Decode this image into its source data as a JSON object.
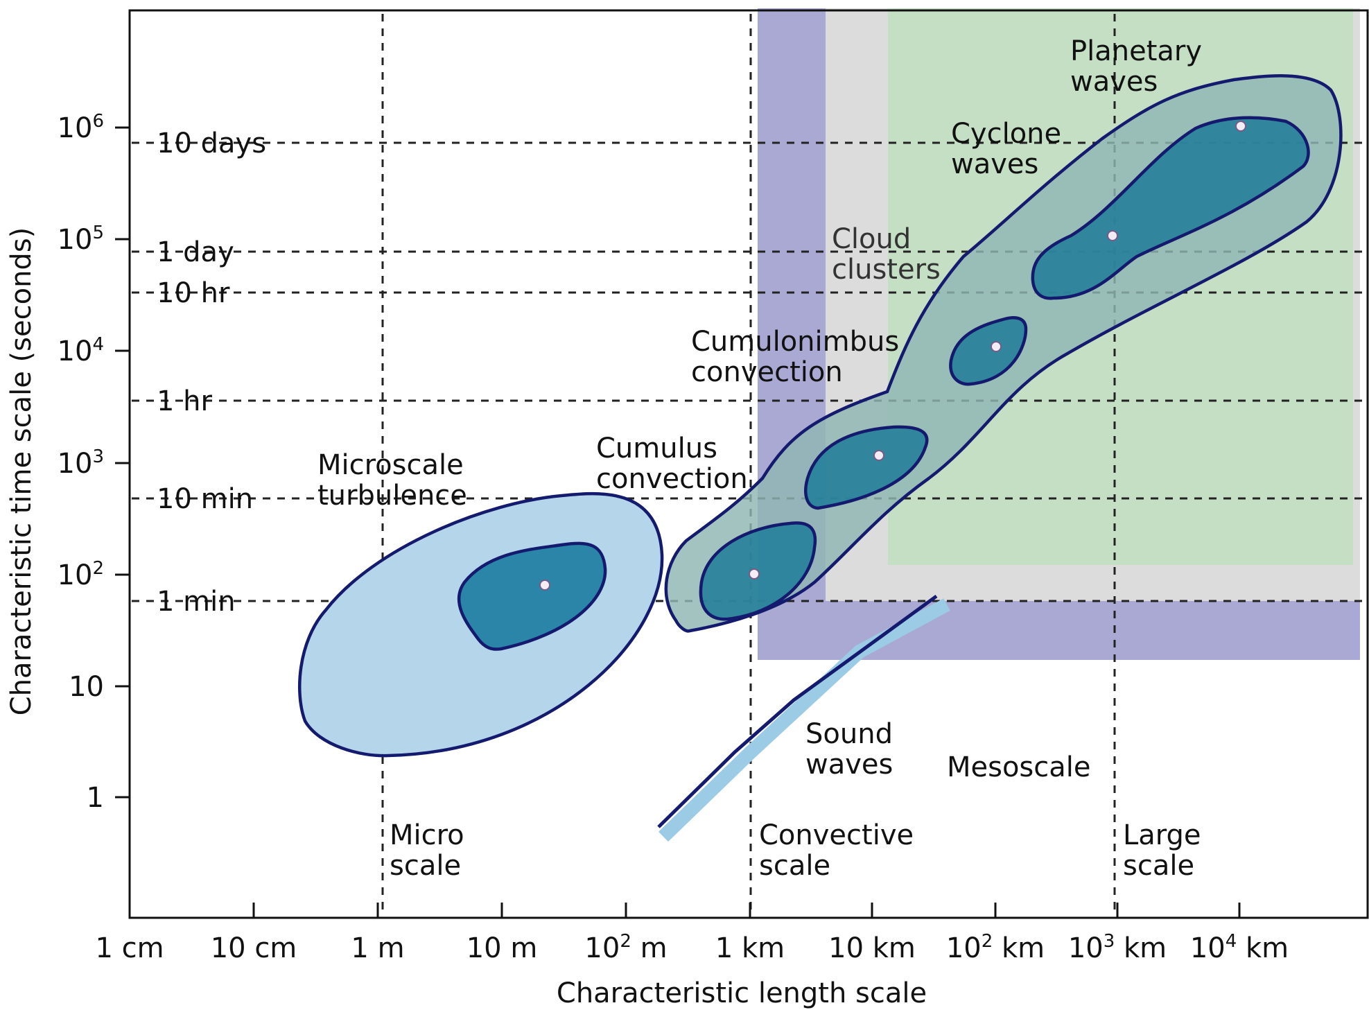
{
  "axes": {
    "x_label": "Characteristic length scale",
    "y_label": "Characteristic time scale (seconds)",
    "x_ticks": [
      {
        "base": "1 cm",
        "sup": "",
        "suffix": ""
      },
      {
        "base": "10 cm",
        "sup": "",
        "suffix": ""
      },
      {
        "base": "1 m",
        "sup": "",
        "suffix": ""
      },
      {
        "base": "10 m",
        "sup": "",
        "suffix": ""
      },
      {
        "base": "10",
        "sup": "2",
        "suffix": " m"
      },
      {
        "base": "1 km",
        "sup": "",
        "suffix": ""
      },
      {
        "base": "10 km",
        "sup": "",
        "suffix": ""
      },
      {
        "base": "10",
        "sup": "2",
        "suffix": " km"
      },
      {
        "base": "10",
        "sup": "3",
        "suffix": " km"
      },
      {
        "base": "10",
        "sup": "4",
        "suffix": " km"
      }
    ],
    "y_ticks": [
      {
        "base": "1",
        "sup": ""
      },
      {
        "base": "10",
        "sup": ""
      },
      {
        "base": "10",
        "sup": "2"
      },
      {
        "base": "10",
        "sup": "3"
      },
      {
        "base": "10",
        "sup": "4"
      },
      {
        "base": "10",
        "sup": "5"
      },
      {
        "base": "10",
        "sup": "6"
      }
    ],
    "time_marks": [
      "10 days",
      "1 day",
      "10 hr",
      "1 hr",
      "10 min",
      "1 min"
    ]
  },
  "scale_regions": {
    "micro": [
      "Micro",
      "scale"
    ],
    "convective": [
      "Convective",
      "scale"
    ],
    "meso": "Mesoscale",
    "large": [
      "Large",
      "scale"
    ]
  },
  "phenomena": {
    "microscale_turbulence": [
      "Microscale",
      "turbulence"
    ],
    "cumulus_convection": [
      "Cumulus",
      "convection"
    ],
    "cumulonimbus_convection": [
      "Cumulonimbus",
      "convection"
    ],
    "cloud_clusters": [
      "Cloud",
      "clusters"
    ],
    "cyclone_waves": [
      "Cyclone",
      "waves"
    ],
    "planetary_waves": [
      "Planetary",
      "waves"
    ],
    "sound_waves": [
      "Sound",
      "waves"
    ]
  },
  "colors": {
    "convective_region": "#a9a9d4",
    "mesoscale_region": "#dcdcdc",
    "large_region": "#c5dfc5",
    "outline": "#141a6e",
    "light_blue": "#b5d6ea",
    "teal": "#2b85a8"
  }
}
